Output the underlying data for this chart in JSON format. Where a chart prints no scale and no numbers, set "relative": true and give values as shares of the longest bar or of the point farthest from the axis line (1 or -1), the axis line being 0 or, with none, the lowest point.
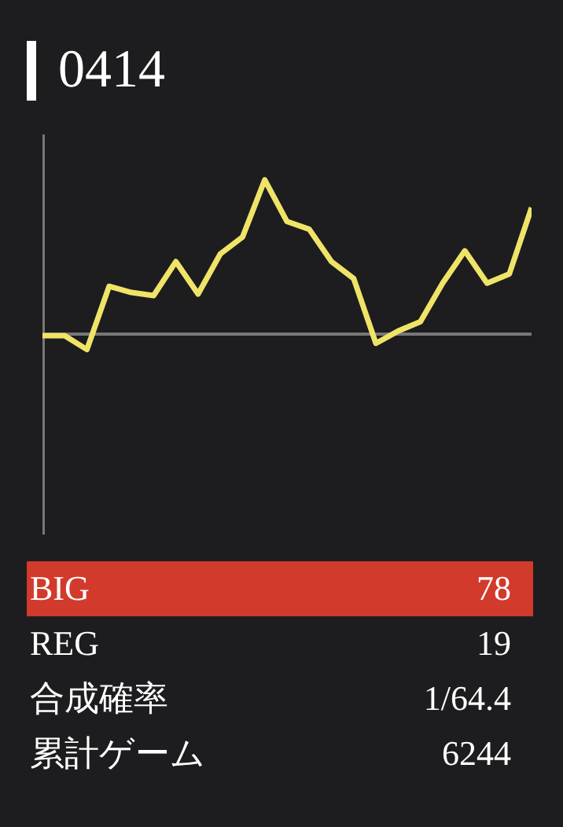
{
  "chart_data": [
    {
      "type": "line",
      "title": "0414",
      "relative": true,
      "categories": [
        null,
        null,
        null,
        null,
        null,
        null,
        null,
        null,
        null,
        null,
        null,
        null,
        null,
        null,
        null,
        null,
        null,
        null,
        null,
        null,
        null,
        null,
        null
      ],
      "series": [
        {
          "color": "#f0e468",
          "values": [
            -0.01,
            -0.01,
            -0.1,
            0.31,
            0.27,
            0.25,
            0.47,
            0.26,
            0.52,
            0.63,
            1.0,
            0.73,
            0.68,
            0.47,
            0.36,
            -0.06,
            0.02,
            0.08,
            0.33,
            0.54,
            0.33,
            0.39,
            0.82
          ]
        }
      ]
    },
    {
      "type": "other",
      "categories": [
        "BIG",
        "REG",
        "合成確率",
        "累計ゲーム"
      ],
      "value_labels": [
        "78",
        "19",
        "1/64.4",
        "6244"
      ],
      "colors": [
        "#d23a2b",
        null,
        null,
        null
      ]
    }
  ]
}
